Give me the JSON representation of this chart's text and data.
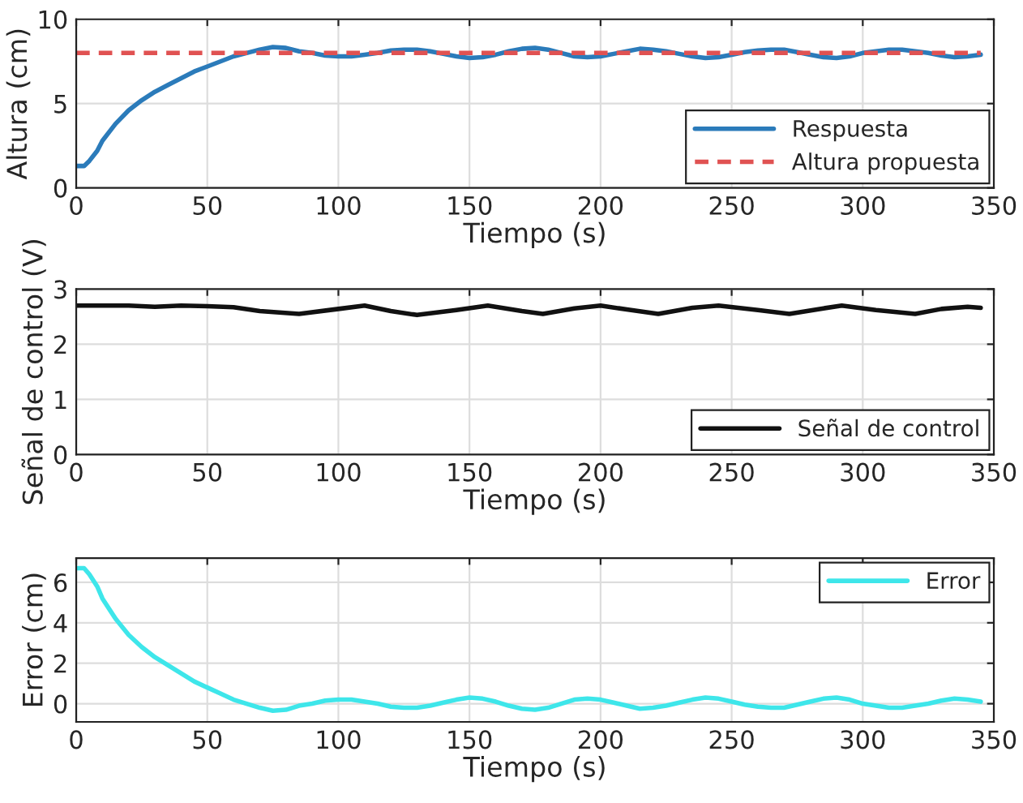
{
  "chart_data": [
    {
      "type": "line",
      "xlabel": "Tiempo (s)",
      "ylabel": "Altura (cm)",
      "xlim": [
        0,
        350
      ],
      "xticks": [
        0,
        50,
        100,
        150,
        200,
        250,
        300,
        350
      ],
      "ylim": [
        0,
        10
      ],
      "yticks": [
        0,
        5,
        10
      ],
      "grid": true,
      "legend": "bottom right",
      "series": [
        {
          "name": "Respuesta",
          "color": "#2b7bba",
          "line_style": "solid",
          "x": [
            0,
            3,
            5,
            8,
            10,
            15,
            20,
            25,
            30,
            35,
            40,
            45,
            50,
            55,
            60,
            65,
            70,
            75,
            80,
            85,
            90,
            95,
            100,
            105,
            110,
            115,
            120,
            125,
            130,
            135,
            140,
            145,
            150,
            155,
            160,
            165,
            170,
            175,
            180,
            185,
            190,
            195,
            200,
            205,
            210,
            215,
            220,
            225,
            230,
            235,
            240,
            245,
            250,
            255,
            260,
            265,
            270,
            275,
            280,
            285,
            290,
            295,
            300,
            305,
            310,
            315,
            320,
            325,
            330,
            335,
            340,
            345
          ],
          "values": [
            1.3,
            1.3,
            1.6,
            2.2,
            2.8,
            3.8,
            4.6,
            5.2,
            5.7,
            6.1,
            6.5,
            6.9,
            7.2,
            7.5,
            7.8,
            8.0,
            8.2,
            8.35,
            8.3,
            8.1,
            8.0,
            7.85,
            7.8,
            7.8,
            7.9,
            8.0,
            8.15,
            8.2,
            8.2,
            8.1,
            7.95,
            7.8,
            7.7,
            7.75,
            7.9,
            8.1,
            8.25,
            8.3,
            8.2,
            8.0,
            7.8,
            7.75,
            7.8,
            7.95,
            8.1,
            8.25,
            8.2,
            8.1,
            7.95,
            7.8,
            7.7,
            7.75,
            7.9,
            8.05,
            8.15,
            8.2,
            8.2,
            8.05,
            7.9,
            7.75,
            7.7,
            7.8,
            8.0,
            8.1,
            8.2,
            8.2,
            8.1,
            8.0,
            7.85,
            7.75,
            7.8,
            7.9
          ]
        },
        {
          "name": "Altura propuesta",
          "color": "#e05252",
          "line_style": "dashed",
          "x": [
            0,
            345
          ],
          "values": [
            8,
            8
          ]
        }
      ]
    },
    {
      "type": "line",
      "xlabel": "Tiempo (s)",
      "ylabel": "Señal de control (V)",
      "xlim": [
        0,
        350
      ],
      "xticks": [
        0,
        50,
        100,
        150,
        200,
        250,
        300,
        350
      ],
      "ylim": [
        0,
        3
      ],
      "yticks": [
        0,
        1,
        2,
        3
      ],
      "grid": true,
      "legend": "bottom right",
      "series": [
        {
          "name": "Señal de control",
          "color": "#111111",
          "line_style": "solid",
          "x": [
            0,
            10,
            20,
            30,
            40,
            50,
            60,
            70,
            85,
            100,
            110,
            120,
            130,
            145,
            157,
            170,
            178,
            190,
            200,
            210,
            222,
            235,
            245,
            260,
            272,
            285,
            292,
            305,
            320,
            330,
            340,
            345
          ],
          "values": [
            2.7,
            2.7,
            2.7,
            2.68,
            2.7,
            2.69,
            2.67,
            2.6,
            2.55,
            2.64,
            2.7,
            2.6,
            2.53,
            2.62,
            2.7,
            2.6,
            2.55,
            2.65,
            2.7,
            2.63,
            2.55,
            2.66,
            2.7,
            2.62,
            2.55,
            2.65,
            2.7,
            2.62,
            2.55,
            2.64,
            2.68,
            2.66
          ]
        }
      ]
    },
    {
      "type": "line",
      "xlabel": "Tiempo (s)",
      "ylabel": "Error (cm)",
      "xlim": [
        0,
        350
      ],
      "xticks": [
        0,
        50,
        100,
        150,
        200,
        250,
        300,
        350
      ],
      "ylim": [
        -0.9,
        7.2
      ],
      "yticks": [
        0,
        2,
        4,
        6
      ],
      "grid": true,
      "legend": "top right",
      "series": [
        {
          "name": "Error",
          "color": "#3ee6ea",
          "line_style": "solid",
          "x": [
            0,
            3,
            5,
            8,
            10,
            15,
            20,
            25,
            30,
            35,
            40,
            45,
            50,
            55,
            60,
            65,
            70,
            75,
            80,
            85,
            90,
            95,
            100,
            105,
            110,
            115,
            120,
            125,
            130,
            135,
            140,
            145,
            150,
            155,
            160,
            165,
            170,
            175,
            180,
            185,
            190,
            195,
            200,
            205,
            210,
            215,
            220,
            225,
            230,
            235,
            240,
            245,
            250,
            255,
            260,
            265,
            270,
            275,
            280,
            285,
            290,
            295,
            300,
            305,
            310,
            315,
            320,
            325,
            330,
            335,
            340,
            345
          ],
          "values": [
            6.7,
            6.7,
            6.4,
            5.8,
            5.2,
            4.2,
            3.4,
            2.8,
            2.3,
            1.9,
            1.5,
            1.1,
            0.8,
            0.5,
            0.2,
            0.0,
            -0.2,
            -0.35,
            -0.3,
            -0.1,
            0.0,
            0.15,
            0.2,
            0.2,
            0.1,
            0.0,
            -0.15,
            -0.2,
            -0.2,
            -0.1,
            0.05,
            0.2,
            0.3,
            0.25,
            0.1,
            -0.1,
            -0.25,
            -0.3,
            -0.2,
            0.0,
            0.2,
            0.25,
            0.2,
            0.05,
            -0.1,
            -0.25,
            -0.2,
            -0.1,
            0.05,
            0.2,
            0.3,
            0.25,
            0.1,
            -0.05,
            -0.15,
            -0.2,
            -0.2,
            -0.05,
            0.1,
            0.25,
            0.3,
            0.2,
            0.0,
            -0.1,
            -0.2,
            -0.2,
            -0.1,
            0.0,
            0.15,
            0.25,
            0.2,
            0.1
          ]
        }
      ]
    }
  ]
}
